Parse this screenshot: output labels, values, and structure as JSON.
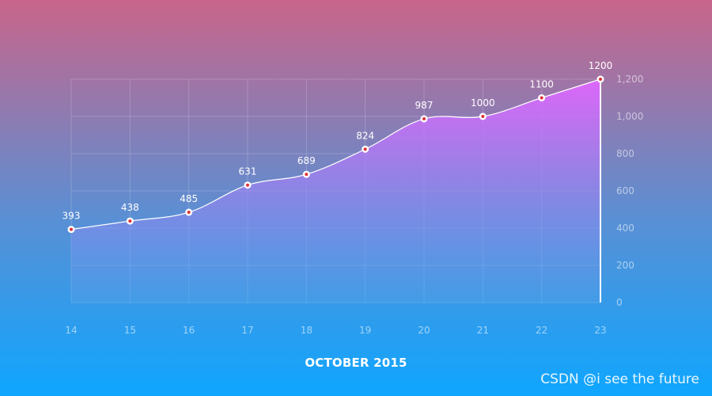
{
  "colors": {
    "bg_top": "#c9658a",
    "bg_mid": "#5a8fd4",
    "bg_bottom": "#0ea6ff",
    "area_top": "#e066ff",
    "area_bottom": "#5aa0e6",
    "line": "#ffffff",
    "point_fill": "#ffffff",
    "point_center": "#e0303a",
    "axis_text": "rgba(255,255,255,0.55)",
    "grid": "rgba(255,255,255,0.18)"
  },
  "chart_data": {
    "type": "area",
    "x": [
      "14",
      "15",
      "16",
      "17",
      "18",
      "19",
      "20",
      "21",
      "22",
      "23"
    ],
    "values": [
      393,
      438,
      485,
      631,
      689,
      824,
      987,
      1000,
      1100,
      1200
    ],
    "data_labels": [
      "393",
      "438",
      "485",
      "631",
      "689",
      "824",
      "987",
      "1000",
      "1100",
      "1200"
    ],
    "y_ticks": [
      0,
      200,
      400,
      600,
      800,
      1000,
      1200
    ],
    "y_tick_labels": [
      "0",
      "200",
      "400",
      "600",
      "800",
      "1,000",
      "1,200"
    ],
    "ylim": [
      0,
      1200
    ],
    "y_axis_side": "right",
    "grid": true,
    "curve": "smooth",
    "xlabel": "OCTOBER 2015"
  },
  "watermark": "CSDN @i see the future"
}
